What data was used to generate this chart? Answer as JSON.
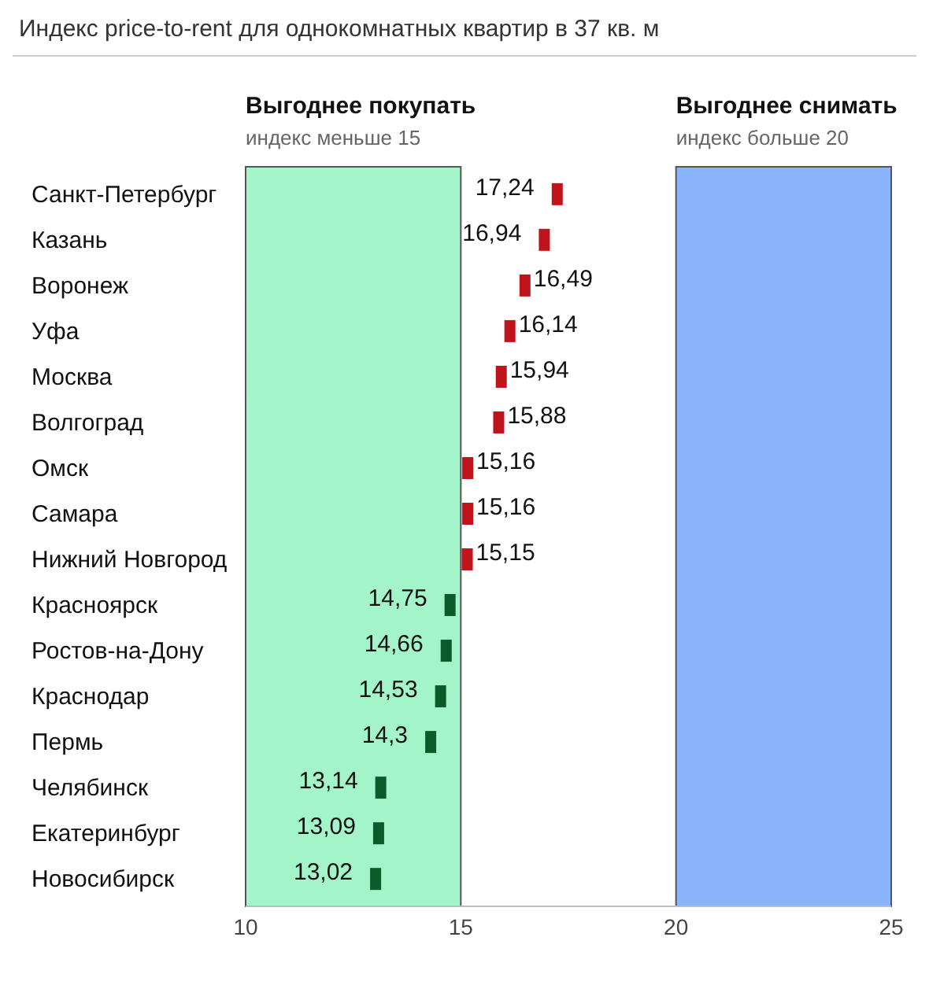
{
  "chart_data": {
    "type": "scatter",
    "orientation": "horizontal",
    "title": "Индекс price-to-rent для однокомнатных квартир в 37 кв. м",
    "categories": [
      "Санкт-Петербург",
      "Казань",
      "Воронеж",
      "Уфа",
      "Москва",
      "Волгоград",
      "Омск",
      "Самара",
      "Нижний Новгород",
      "Красноярск",
      "Ростов-на-Дону",
      "Краснодар",
      "Пермь",
      "Челябинск",
      "Екатеринбург",
      "Новосибирск"
    ],
    "values": [
      17.24,
      16.94,
      16.49,
      16.14,
      15.94,
      15.88,
      15.16,
      15.16,
      15.15,
      14.75,
      14.66,
      14.53,
      14.3,
      13.14,
      13.09,
      13.02
    ],
    "value_labels": [
      "17,24",
      "16,94",
      "16,49",
      "16,14",
      "15,94",
      "15,88",
      "15,16",
      "15,16",
      "15,15",
      "14,75",
      "14,66",
      "14,53",
      "14,3",
      "13,14",
      "13,09",
      "13,02"
    ],
    "colors": [
      "#c0141c",
      "#c0141c",
      "#c0141c",
      "#c0141c",
      "#c0141c",
      "#c0141c",
      "#c0141c",
      "#c0141c",
      "#c0141c",
      "#0b5a2c",
      "#0b5a2c",
      "#0b5a2c",
      "#0b5a2c",
      "#0b5a2c",
      "#0b5a2c",
      "#0b5a2c"
    ],
    "xlim": [
      10,
      25
    ],
    "xticks": [
      10,
      15,
      20,
      25
    ],
    "bands": [
      {
        "axis": "x",
        "from": 10,
        "to": 15,
        "label": "Выгоднее покупать",
        "color": "#a3f5c9"
      },
      {
        "axis": "x",
        "from": 20,
        "to": 25,
        "label": "Выгоднее снимать",
        "color": "#8ab4fb"
      }
    ],
    "annotations": [
      "индекс меньше 15",
      "индекс больше 20"
    ],
    "grid": false,
    "legend": false
  }
}
